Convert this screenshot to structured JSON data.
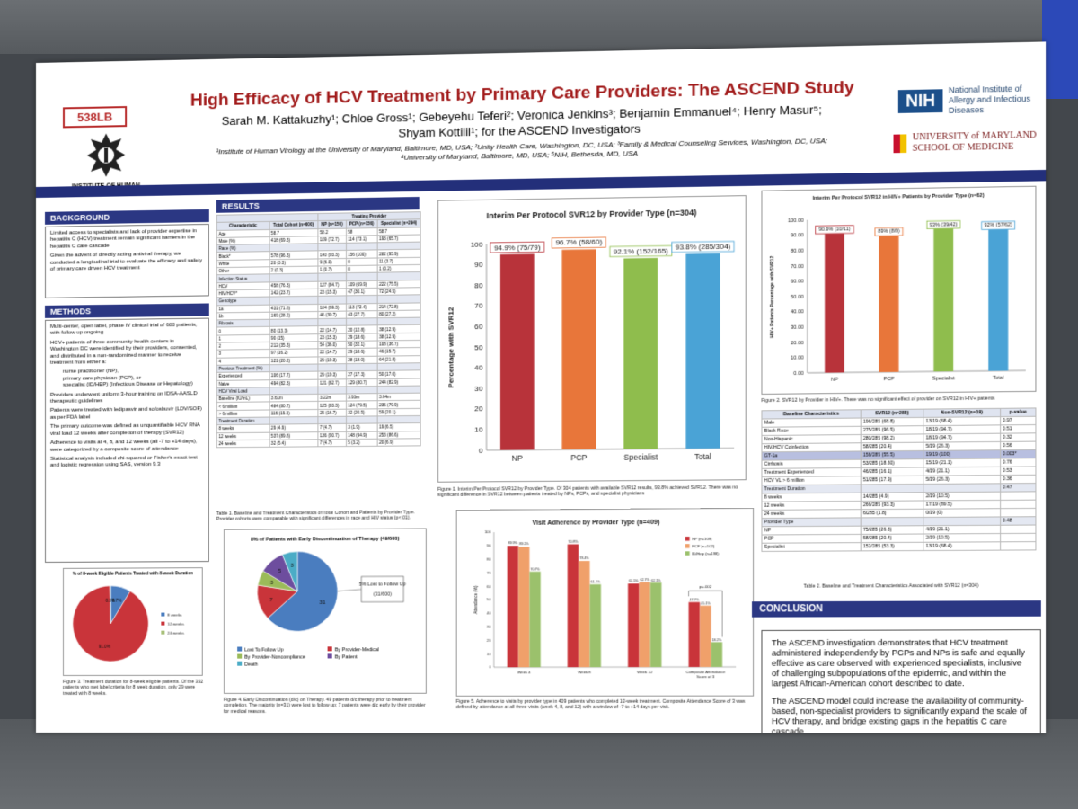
{
  "header": {
    "code": "538LB",
    "institute_logo_text": "INSTITUTE OF HUMAN VIROLOGY",
    "title": "High Efficacy of HCV Treatment by Primary Care Providers: The ASCEND Study",
    "authors_line1": "Sarah M. Kattakuzhy¹; Chloe Gross¹; Gebeyehu Teferi²; Veronica Jenkins³; Benjamin Emmanuel⁴; Henry Masur⁵;",
    "authors_line2": "Shyam Kottilil¹; for the ASCEND Investigators",
    "affiliations_line1": "¹Institute of Human Virology at the University of Maryland, Baltimore, MD, USA; ²Unity Health Care, Washington, DC, USA; ³Family & Medical Counseling Services, Washington, DC, USA;",
    "affiliations_line2": "⁴University of Maryland, Baltimore, MD, USA; ⁵NIH, Bethesda, MD, USA",
    "nih_mark": "NIH",
    "nih_name": "National Institute of Allergy and Infectious Diseases",
    "umd_name_line1": "UNIVERSITY of MARYLAND",
    "umd_name_line2": "SCHOOL OF MEDICINE",
    "colors": {
      "title_red": "#a11a1a",
      "band_navy": "#2b3783"
    }
  },
  "background": {
    "heading": "BACKGROUND",
    "bullets": [
      "Limited access to specialists and lack of provider expertise in hepatitis C (HCV) treatment remain significant barriers in the hepatitis C care cascade",
      "Given the advent of directly acting antiviral therapy, we conducted a longitudinal trial to evaluate the efficacy and safety of primary care driven HCV treatment"
    ]
  },
  "methods": {
    "heading": "METHODS",
    "bullets": [
      "Multi-center, open label, phase IV clinical trial of 600 patients, with follow up ongoing",
      "HCV+ patients of three community health centers in Washington DC were identified by their providers, consented, and distributed in a non-randomized manner to receive treatment from either a:",
      "Providers underwent uniform 3-hour training on IDSA-AASLD therapeutic guidelines",
      "Patients were treated with ledipasvir and sofosbuvir (LDV/SOF) as per FDA label",
      "The primary outcome was defined as unquantifiable HCV RNA viral load 12 weeks after completion of therapy (SVR12)",
      "Adherence to visits at 4, 8, and 12 weeks (all -7 to +14 days), were categorized by a composite score of attendance",
      "Statistical analysis included chi-squared or Fisher's exact test and logistic regression using SAS, version 9.3"
    ],
    "sub_bullets": [
      "nurse practitioner (NP),",
      "primary care physician (PCP), or",
      "specialist (ID/HEP) (Infectious Disease or Hepatology)"
    ]
  },
  "fig3": {
    "title": "% of 8-week Eligible Patients Treated with 8-week Duration",
    "legend": [
      "8 weeks",
      "12 weeks",
      "24 weeks"
    ],
    "caption": "Figure 3. Treatment duration for 8-week eligible patients. Of the 332 patients who met label criteria for 8 week duration, only 29 were treated with 8 weeks."
  },
  "results": {
    "heading": "RESULTS",
    "table1": {
      "title": "Treating Provider",
      "columns": [
        "Characteristic",
        "Total Cohort (n=600)",
        "NP (n=150)",
        "PCP (n=156)",
        "Specialist (n=294)"
      ],
      "rows": [
        [
          "Age",
          "58.7",
          "58.2",
          "58",
          "58.7"
        ],
        [
          "Male (%)",
          "418 (69.3)",
          "109 (72.7)",
          "114 (73.1)",
          "193 (65.7)"
        ],
        [
          "Race (%)",
          "",
          "",
          "",
          ""
        ],
        [
          "Black*",
          "578 (96.3)",
          "140 (93.3)",
          "156 (100)",
          "282 (95.9)"
        ],
        [
          "White",
          "20 (3.3)",
          "9 (6.0)",
          "0",
          "11 (3.7)"
        ],
        [
          "Other",
          "2 (0.3)",
          "1 (0.7)",
          "0",
          "1 (0.2)"
        ],
        [
          "Infection Status",
          "",
          "",
          "",
          ""
        ],
        [
          "HCV",
          "458 (76.3)",
          "127 (84.7)",
          "109 (69.9)",
          "222 (75.5)"
        ],
        [
          "HIV/HCV*",
          "142 (23.7)",
          "23 (15.3)",
          "47 (30.1)",
          "72 (24.5)"
        ],
        [
          "Genotype",
          "",
          "",
          "",
          ""
        ],
        [
          "1a",
          "431 (71.8)",
          "104 (69.3)",
          "113 (72.4)",
          "214 (72.8)"
        ],
        [
          "1b",
          "169 (28.2)",
          "46 (30.7)",
          "43 (27.7)",
          "80 (27.2)"
        ],
        [
          "Fibrosis",
          "",
          "",
          "",
          ""
        ],
        [
          "0",
          "80 (13.3)",
          "22 (14.7)",
          "20 (12.8)",
          "38 (12.9)"
        ],
        [
          "1",
          "90 (15)",
          "23 (15.3)",
          "29 (18.6)",
          "38 (12.9)"
        ],
        [
          "2",
          "212 (35.3)",
          "54 (36.0)",
          "50 (32.1)",
          "108 (36.7)"
        ],
        [
          "3",
          "97 (16.2)",
          "22 (14.7)",
          "29 (18.6)",
          "46 (15.7)"
        ],
        [
          "4",
          "121 (20.2)",
          "29 (19.3)",
          "28 (18.0)",
          "64 (21.8)"
        ],
        [
          "Previous Treatment (%)",
          "",
          "",
          "",
          ""
        ],
        [
          "Experienced",
          "106 (17.7)",
          "29 (19.3)",
          "27 (17.3)",
          "50 (17.0)"
        ],
        [
          "Naive",
          "494 (82.3)",
          "121 (82.7)",
          "129 (80.7)",
          "244 (82.9)"
        ],
        [
          "HCV Viral Load",
          "",
          "",
          "",
          ""
        ],
        [
          "Baseline (IU/mL)",
          "3.61m",
          "3.22m",
          "3.93m",
          "3.64m"
        ],
        [
          "< 6 million",
          "484 (80.7)",
          "125 (83.3)",
          "124 (79.5)",
          "235 (79.9)"
        ],
        [
          "> 6 million",
          "116 (19.3)",
          "25 (16.7)",
          "32 (20.5)",
          "59 (20.1)"
        ],
        [
          "Treatment Duration",
          "",
          "",
          "",
          ""
        ],
        [
          "8 weeks",
          "29 (4.9)",
          "7 (4.7)",
          "3 (1.9)",
          "19 (6.5)"
        ],
        [
          "12 weeks",
          "537 (89.8)",
          "136 (90.7)",
          "148 (94.9)",
          "253 (86.6)"
        ],
        [
          "24 weeks",
          "32 (5.4)",
          "7 (4.7)",
          "5 (3.2)",
          "20 (6.9)"
        ]
      ],
      "caption": "Table 1. Baseline and Treatment Characteristics of Total Cohort and Patients by Provider Type. Provider cohorts were comparable with significant differences in race and HIV status (p<.01)."
    }
  },
  "fig4": {
    "title": "8% of Patients with Early Discontinuation of Therapy (49/600)",
    "callout": "5% Lost to Follow Up (31/600)",
    "legend": [
      "Lost To Follow Up",
      "By Provider-Medical",
      "By Provider-Noncompliance",
      "By Patient",
      "Death"
    ],
    "caption": "Figure 4. Early Discontinuation (d/c) on Therapy. 49 patients d/c therapy prior to treatment completion. The majority (n=31) were lost to follow up; 7 patients were d/c early by their provider for medical reasons."
  },
  "fig1": {
    "caption": "Figure 1. Interim Per Protocol SVR12 by Provider Type. Of 304 patients with available SVR12 results, 93.8% achieved SVR12. There was no significant difference in SVR12 between patients treated by NPs, PCPs, and specialist physicians"
  },
  "fig5": {
    "caption": "Figure 5. Adherence to visits by provider type in 409 patients who completed 12-week treatment. Composite Attendance Score of 3 was defined by attendance at all three visits (week 4, 8, and 12) with a window of -7 to +14 days per visit."
  },
  "fig2": {
    "caption": "Figure 2. SVR12 by Provider in HIV+. There was no significant effect of provider on SVR12 in HIV+ patients"
  },
  "table2": {
    "columns": [
      "Baseline Characteristics",
      "SVR12 (n=285)",
      "Non-SVR12 (n=19)",
      "p-value"
    ],
    "rows": [
      [
        "Male",
        "196/285 (68.8)",
        "13/19 (68.4)",
        "0.97"
      ],
      [
        "Black Race",
        "275/285 (96.5)",
        "18/19 (94.7)",
        "0.51"
      ],
      [
        "Non-Hispanic",
        "280/285 (98.2)",
        "18/19 (94.7)",
        "0.32"
      ],
      [
        "HIV/HCV Coinfection",
        "58/285 (20.4)",
        "5/19 (26.3)",
        "0.56"
      ],
      [
        "GT-1a",
        "158/285 (55.5)",
        "19/19 (100)",
        "0.003*"
      ],
      [
        "Cirrhosis",
        "53/285 (18.60)",
        "15/19 (21.1)",
        "0.76"
      ],
      [
        "Treatment Experienced",
        "46/285 (16.1)",
        "4/19 (21.1)",
        "0.53"
      ],
      [
        "HCV VL > 6 million",
        "51/285 (17.9)",
        "5/19 (26.3)",
        "0.36"
      ],
      [
        "Treatment Duration",
        "",
        "",
        "0.47"
      ],
      [
        "8 weeks",
        "14/285 (4.9)",
        "2/19 (10.5)",
        ""
      ],
      [
        "12 weeks",
        "266/285 (93.3)",
        "17/19 (89.5)",
        ""
      ],
      [
        "24 weeks",
        "6/285 (1.8)",
        "0/19 (0)",
        ""
      ],
      [
        "Provider Type",
        "",
        "",
        "0.48"
      ],
      [
        "NP",
        "75/285 (26.3)",
        "4/19 (21.1)",
        ""
      ],
      [
        "PCP",
        "58/285 (20.4)",
        "2/19 (10.5)",
        ""
      ],
      [
        "Specialist",
        "152/285 (53.3)",
        "13/19 (68.4)",
        ""
      ]
    ],
    "caption": "Table 2. Baseline and Treatment Characteristics Associated with SVR12 (n=304)"
  },
  "conclusion": {
    "heading": "CONCLUSION",
    "para1": "The ASCEND investigation demonstrates that HCV treatment administered independently by PCPs and NPs is safe and equally effective as care observed with experienced specialists, inclusive of challenging subpopulations of the epidemic, and within the largest African-American cohort described to date.",
    "para2": "The ASCEND model could increase the availability of community-based, non-specialist providers to significantly expand the scale of HCV therapy, and bridge existing gaps in the hepatitis C care cascade."
  },
  "chart_data": [
    {
      "id": "fig1",
      "type": "bar",
      "title": "Interim Per Protocol SVR12 by Provider Type (n=304)",
      "xlabel": "",
      "ylabel": "Percentage with SVR12",
      "ylim": [
        0,
        100
      ],
      "yticks": [
        0,
        10,
        20,
        30,
        40,
        50,
        60,
        70,
        80,
        90,
        100
      ],
      "categories": [
        "NP",
        "PCP",
        "Specialist",
        "Total"
      ],
      "values": [
        94.9,
        96.7,
        92.1,
        93.8
      ],
      "data_labels": [
        "94.9% (75/79)",
        "96.7% (58/60)",
        "92.1% (152/165)",
        "93.8% (285/304)"
      ],
      "colors": [
        "#b8333a",
        "#e8763a",
        "#8fbd4d",
        "#4aa3d6"
      ],
      "grid": false
    },
    {
      "id": "fig2",
      "type": "bar",
      "title": "Interim Per Protocol SVR12 in HIV+ Patients by Provider Type (n=62)",
      "xlabel": "",
      "ylabel": "HIV+ Patients Percentage with SVR12",
      "ylim": [
        0,
        100
      ],
      "yticks": [
        0,
        10,
        20,
        30,
        40,
        50,
        60,
        70,
        80,
        90,
        100
      ],
      "categories": [
        "NP",
        "PCP",
        "Specialist",
        "Total"
      ],
      "values": [
        90.9,
        89,
        93,
        92
      ],
      "data_labels": [
        "90.9% (10/11)",
        "89% (8/9)",
        "93% (39/42)",
        "92% (57/62)"
      ],
      "colors": [
        "#b8333a",
        "#e8763a",
        "#8fbd4d",
        "#4aa3d6"
      ],
      "grid": false
    },
    {
      "id": "fig3",
      "type": "pie",
      "title": "% of 8-week Eligible Patients Treated with 8-week Duration",
      "categories": [
        "8 weeks",
        "12 weeks",
        "24 weeks"
      ],
      "values": [
        8.7,
        91,
        0.3
      ],
      "data_labels": [
        "8.7%",
        "91.0%",
        "0.3%"
      ],
      "colors": [
        "#4a7dbf",
        "#c9343a",
        "#a8c07a"
      ],
      "legend": "right"
    },
    {
      "id": "fig4",
      "type": "pie",
      "title": "8% of Patients with Early Discontinuation of Therapy (49/600)",
      "categories": [
        "Lost To Follow Up",
        "By Provider-Medical",
        "By Provider-Noncompliance",
        "By Patient",
        "Death"
      ],
      "values": [
        31,
        7,
        3,
        5,
        3
      ],
      "data_labels": [
        "31",
        "7",
        "3",
        "5",
        "3"
      ],
      "colors": [
        "#4a7dbf",
        "#c9343a",
        "#9bbb59",
        "#6d4d9e",
        "#4bacc6"
      ],
      "legend": "bottom"
    },
    {
      "id": "fig5",
      "type": "bar",
      "title": "Visit Adherence by Provider Type (n=409)",
      "xlabel": "",
      "ylabel": "Attendance (%)",
      "ylim": [
        0,
        100
      ],
      "yticks": [
        0,
        10,
        20,
        30,
        40,
        50,
        60,
        70,
        80,
        90,
        100
      ],
      "categories": [
        "Week 4",
        "Week 8",
        "Week 12",
        "Composite Attendance Score of 3"
      ],
      "series": [
        {
          "name": "NP (n=109)",
          "values": [
            89.9,
            90.8,
            61.5,
            47.7
          ],
          "labels": [
            "89.9%",
            "90.8%",
            "61.5%",
            "47.7%"
          ],
          "color": "#c9343a"
        },
        {
          "name": "PCP (n=102)",
          "values": [
            89.2,
            78.4,
            62.7,
            45.1
          ],
          "labels": [
            "89.2%",
            "78.4%",
            "62.7%",
            "45.1%"
          ],
          "color": "#f0a06a"
        },
        {
          "name": "ID/Hep (n=198)",
          "values": [
            70.7,
            61.1,
            62.1,
            18.2
          ],
          "labels": [
            "70.7%",
            "61.1%",
            "62.1%",
            "18.2%"
          ],
          "color": "#9bc16c"
        }
      ],
      "annotations": [
        "p=.002"
      ],
      "legend": "top-right"
    }
  ]
}
